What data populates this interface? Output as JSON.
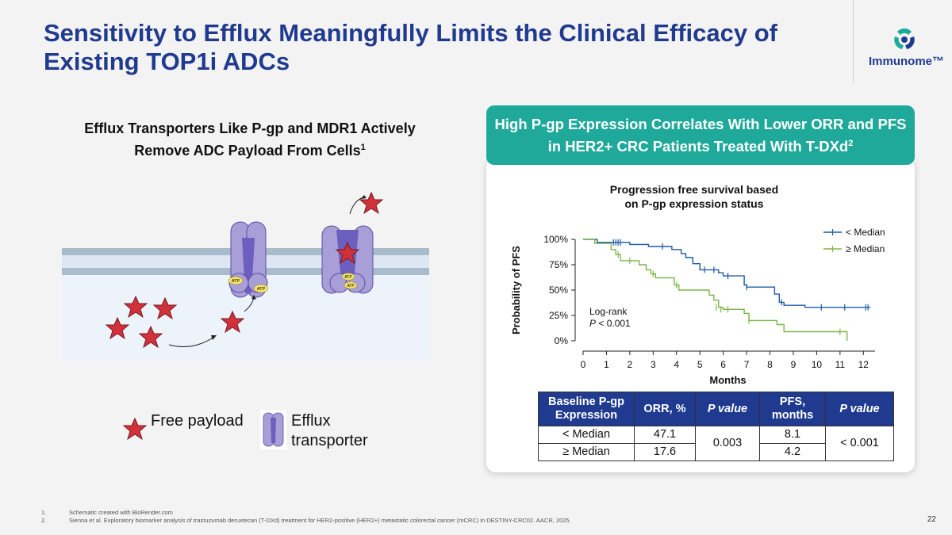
{
  "slide": {
    "title": "Sensitivity to Efflux Meaningfully Limits the Clinical Efficacy of Existing TOP1i ADCs",
    "page_number": "22"
  },
  "logo": {
    "text": "Immunome™"
  },
  "left_panel": {
    "heading": "Efflux Transporters Like P-gp and MDR1 Actively Remove ADC Payload From Cells",
    "heading_sup": "1",
    "atp_label": "ATP",
    "legend": {
      "free_payload": "Free payload",
      "efflux_transporter": "Efflux transporter"
    }
  },
  "right_panel": {
    "header": "High P-gp Expression Correlates With Lower ORR and PFS in HER2+ CRC Patients Treated With T-DXd",
    "header_sup": "2",
    "table": {
      "headers": [
        "Baseline P-gp Expression",
        "ORR, %",
        "P value",
        "PFS, months",
        "P value"
      ],
      "rows": [
        {
          "group": "< Median",
          "orr": "47.1",
          "pfs": "8.1"
        },
        {
          "group": "≥ Median",
          "orr": "17.6",
          "pfs": "4.2"
        }
      ],
      "orr_p": "0.003",
      "pfs_p": "< 0.001"
    }
  },
  "chart_data": {
    "type": "line",
    "title_line1": "Progression free survival based",
    "title_line2": "on P-gp expression status",
    "xlabel": "Months",
    "ylabel": "Probability of PFS",
    "xlim": [
      0,
      12.5
    ],
    "ylim": [
      0,
      100
    ],
    "x_ticks": [
      0,
      1,
      2,
      3,
      4,
      5,
      6,
      7,
      8,
      9,
      10,
      11,
      12
    ],
    "y_ticks": [
      0,
      25,
      50,
      75,
      100
    ],
    "y_tick_labels": [
      "0%",
      "25%",
      "50%",
      "75%",
      "100%"
    ],
    "annotation_line1": "Log-rank",
    "annotation_p": "P",
    "annotation_line2": " < 0.001",
    "series": [
      {
        "name": "< Median",
        "color": "#1f5aa8",
        "steps": [
          [
            0,
            100
          ],
          [
            0.6,
            100
          ],
          [
            0.6,
            97
          ],
          [
            2.0,
            97
          ],
          [
            2.0,
            95
          ],
          [
            2.8,
            95
          ],
          [
            2.8,
            93
          ],
          [
            3.8,
            93
          ],
          [
            3.8,
            90
          ],
          [
            4.2,
            90
          ],
          [
            4.2,
            86
          ],
          [
            4.4,
            86
          ],
          [
            4.4,
            82
          ],
          [
            4.7,
            82
          ],
          [
            4.7,
            76
          ],
          [
            5.0,
            76
          ],
          [
            5.0,
            70
          ],
          [
            5.8,
            70
          ],
          [
            5.8,
            67
          ],
          [
            6.0,
            67
          ],
          [
            6.0,
            64
          ],
          [
            6.9,
            64
          ],
          [
            6.9,
            55
          ],
          [
            7.0,
            55
          ],
          [
            7.0,
            53
          ],
          [
            8.2,
            53
          ],
          [
            8.2,
            46
          ],
          [
            8.4,
            46
          ],
          [
            8.4,
            38
          ],
          [
            8.6,
            38
          ],
          [
            8.6,
            35
          ],
          [
            9.5,
            35
          ],
          [
            9.5,
            33
          ],
          [
            12.3,
            33
          ]
        ],
        "censors": [
          [
            1.3,
            97
          ],
          [
            1.4,
            97
          ],
          [
            1.5,
            97
          ],
          [
            1.6,
            97
          ],
          [
            3.4,
            93
          ],
          [
            5.2,
            70
          ],
          [
            5.6,
            70
          ],
          [
            6.2,
            64
          ],
          [
            7.0,
            53
          ],
          [
            8.5,
            38
          ],
          [
            10.2,
            33
          ],
          [
            11.2,
            33
          ],
          [
            12.1,
            33
          ],
          [
            12.2,
            33
          ]
        ]
      },
      {
        "name": "≥ Median",
        "color": "#7ab648",
        "steps": [
          [
            0,
            100
          ],
          [
            0.5,
            100
          ],
          [
            0.5,
            96
          ],
          [
            1.2,
            96
          ],
          [
            1.2,
            90
          ],
          [
            1.4,
            90
          ],
          [
            1.4,
            85
          ],
          [
            1.6,
            85
          ],
          [
            1.6,
            79
          ],
          [
            2.4,
            79
          ],
          [
            2.4,
            75
          ],
          [
            2.7,
            75
          ],
          [
            2.7,
            70
          ],
          [
            2.9,
            70
          ],
          [
            2.9,
            66
          ],
          [
            3.1,
            66
          ],
          [
            3.1,
            62
          ],
          [
            3.9,
            62
          ],
          [
            3.9,
            55
          ],
          [
            4.1,
            55
          ],
          [
            4.1,
            50
          ],
          [
            5.4,
            50
          ],
          [
            5.4,
            45
          ],
          [
            5.6,
            45
          ],
          [
            5.6,
            40
          ],
          [
            5.8,
            40
          ],
          [
            5.8,
            33
          ],
          [
            6.0,
            33
          ],
          [
            6.0,
            31
          ],
          [
            6.9,
            31
          ],
          [
            6.9,
            27
          ],
          [
            7.1,
            27
          ],
          [
            7.1,
            20
          ],
          [
            8.3,
            20
          ],
          [
            8.3,
            16
          ],
          [
            8.6,
            16
          ],
          [
            8.6,
            9
          ],
          [
            11.3,
            9
          ],
          [
            11.3,
            0
          ]
        ],
        "censors": [
          [
            1.5,
            85
          ],
          [
            2.0,
            79
          ],
          [
            3.0,
            66
          ],
          [
            4.0,
            55
          ],
          [
            5.7,
            33
          ],
          [
            5.9,
            31
          ],
          [
            6.2,
            31
          ],
          [
            7.1,
            20
          ],
          [
            11.0,
            9
          ]
        ]
      }
    ]
  },
  "footnotes": [
    {
      "num": "1.",
      "text": "Schematic created with BioRender.com"
    },
    {
      "num": "2.",
      "text": "Sienna et al. Exploratory biomarker analysis of trastuzumab deruxtecan (T-DXd) treatment for HER2-positive (HER2+) metastatic colorectal cancer (mCRC) in DESTINY-CRC02. AACR, 2025."
    }
  ]
}
